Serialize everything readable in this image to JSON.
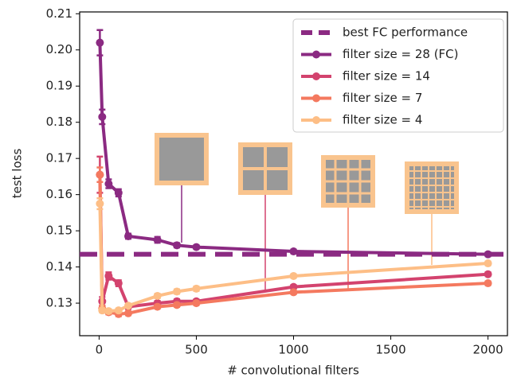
{
  "chart_data": {
    "type": "line",
    "xlabel": "# convolutional filters",
    "ylabel": "test loss",
    "x": [
      4,
      16,
      49,
      100,
      150,
      300,
      400,
      500,
      1000,
      2000
    ],
    "reference": {
      "name": "best FC performance",
      "value": 0.1435,
      "color": "#8b2a82"
    },
    "series": [
      {
        "name": "filter size = 28 (FC)",
        "color": "#8b2a82",
        "values": [
          0.202,
          0.1815,
          0.163,
          0.1605,
          0.1485,
          0.1475,
          0.146,
          0.1455,
          0.1443,
          0.1435
        ],
        "errors": [
          0.0035,
          0.002,
          0.0012,
          0.001,
          0.0007,
          0.0008,
          0.0006,
          0.0005,
          0.0005,
          0.0005
        ]
      },
      {
        "name": "filter size = 14",
        "color": "#d3436e",
        "values": [
          0.1655,
          0.1305,
          0.1375,
          0.1355,
          0.129,
          0.13,
          0.1305,
          0.1305,
          0.1345,
          0.138
        ],
        "errors": [
          0.005,
          0.0012,
          0.001,
          0.0008,
          0.0006,
          0.0006,
          0.0006,
          0.0005,
          0.0005,
          0.0005
        ]
      },
      {
        "name": "filter size = 7",
        "color": "#f4795f",
        "values": [
          0.1655,
          0.1285,
          0.1275,
          0.127,
          0.1272,
          0.129,
          0.1295,
          0.13,
          0.133,
          0.1355
        ],
        "errors": [
          0.002,
          0.0008,
          0.0006,
          0.0006,
          0.0005,
          0.0005,
          0.0005,
          0.0005,
          0.0005,
          0.0005
        ]
      },
      {
        "name": "filter size = 4",
        "color": "#fdbe86",
        "values": [
          0.1575,
          0.128,
          0.1278,
          0.128,
          0.1293,
          0.132,
          0.1332,
          0.134,
          0.1375,
          0.141
        ],
        "errors": [
          0.0015,
          0.0006,
          0.0005,
          0.0005,
          0.0005,
          0.0006,
          0.0006,
          0.0006,
          0.0005,
          0.0005
        ]
      }
    ],
    "xlim": [
      -100,
      2100
    ],
    "ylim": [
      0.121,
      0.2105
    ],
    "xticks": [
      0,
      500,
      1000,
      1500,
      2000
    ],
    "yticks": [
      0.13,
      0.14,
      0.15,
      0.16,
      0.17,
      0.18,
      0.19,
      {
        "value": 0.2,
        "label": "0.20"
      },
      0.21
    ],
    "legend": "upper right"
  }
}
